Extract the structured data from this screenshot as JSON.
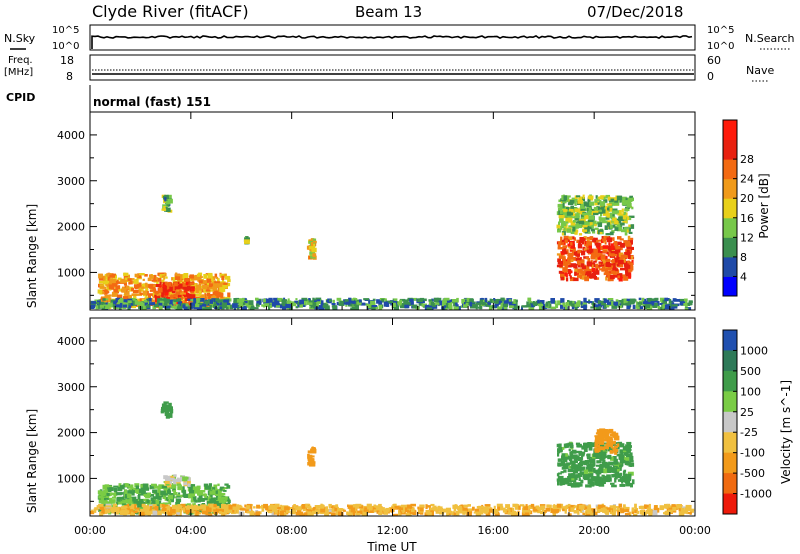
{
  "header": {
    "station": "Clyde River (fitACF)",
    "beam": "Beam 13",
    "date": "07/Dec/2018"
  },
  "top_panels": {
    "nsky_label": "N.Sky",
    "nsky_ticks": [
      "10^5",
      "10^0"
    ],
    "nsearch_label": "N.Search",
    "nsearch_ticks": [
      "10^5",
      "10^0"
    ],
    "freq_label": "Freq.",
    "freq_unit": "[MHz]",
    "freq_ticks": [
      "18",
      "8"
    ],
    "nave_label": "Nave",
    "nave_ticks": [
      "60",
      "0"
    ],
    "cpid_label": "CPID",
    "cpid_value": "normal (fast) 151"
  },
  "axes": {
    "xlabel": "Time UT",
    "x_ticks": [
      "00:00",
      "04:00",
      "08:00",
      "12:00",
      "16:00",
      "20:00",
      "00:00"
    ],
    "ylabel": "Slant Range [km]",
    "y_ticks": [
      "1000",
      "2000",
      "3000",
      "4000"
    ],
    "ylim": [
      180,
      4500
    ]
  },
  "power_colorbar": {
    "label": "Power [dB]",
    "ticks": [
      "4",
      "8",
      "12",
      "16",
      "20",
      "24",
      "28"
    ],
    "colors": [
      "#0000ff",
      "#1f4aa8",
      "#3b8f4f",
      "#77c84a",
      "#e8d01a",
      "#f09a1a",
      "#f36a12",
      "#e8200f",
      "#ff1a0a"
    ]
  },
  "velocity_colorbar": {
    "label": "Velocity [m s^-1]",
    "ticks": [
      "1000",
      "500",
      "100",
      "25",
      "-25",
      "-100",
      "-500",
      "-1000"
    ],
    "colors": [
      "#2050b0",
      "#2e7a58",
      "#3f9c4a",
      "#7acc45",
      "#c8c8c8",
      "#f0c040",
      "#f29a1a",
      "#f06a10",
      "#ee1a0a"
    ]
  },
  "chart_data": {
    "type": "heatmap",
    "title": "Clyde River (fitACF) Beam 13 07/Dec/2018",
    "xlabel": "Time UT",
    "ylabel": "Slant Range [km]",
    "xlim_hours": [
      0,
      24
    ],
    "ylim_km": [
      180,
      4500
    ],
    "power_echo_regions": [
      {
        "t_start": 0.3,
        "t_end": 5.6,
        "r_start": 200,
        "r_end": 1000,
        "power_db": 22
      },
      {
        "t_start": 2.5,
        "t_end": 4.2,
        "r_start": 250,
        "r_end": 800,
        "power_db": 28
      },
      {
        "t_start": 8.6,
        "t_end": 9.0,
        "r_start": 1250,
        "r_end": 1750,
        "power_db": 20
      },
      {
        "t_start": 2.8,
        "t_end": 3.3,
        "r_start": 2300,
        "r_end": 2700,
        "power_db": 12
      },
      {
        "t_start": 6.1,
        "t_end": 6.3,
        "r_start": 1600,
        "r_end": 1800,
        "power_db": 12
      },
      {
        "t_start": 18.5,
        "t_end": 21.6,
        "r_start": 800,
        "r_end": 1800,
        "power_db": 28
      },
      {
        "t_start": 18.5,
        "t_end": 21.6,
        "r_start": 1800,
        "r_end": 2700,
        "power_db": 14
      },
      {
        "t_start": 0.0,
        "t_end": 24.0,
        "r_start": 180,
        "r_end": 450,
        "power_db": 10
      }
    ],
    "velocity_echo_regions": [
      {
        "t_start": 0.3,
        "t_end": 5.6,
        "r_start": 200,
        "r_end": 900,
        "velocity": 100
      },
      {
        "t_start": 2.9,
        "t_end": 4.0,
        "r_start": 800,
        "r_end": 1100,
        "velocity": 0
      },
      {
        "t_start": 8.6,
        "t_end": 9.0,
        "r_start": 1250,
        "r_end": 1750,
        "velocity": -300
      },
      {
        "t_start": 2.8,
        "t_end": 3.3,
        "r_start": 2300,
        "r_end": 2700,
        "velocity": 200
      },
      {
        "t_start": 18.5,
        "t_end": 21.6,
        "r_start": 800,
        "r_end": 1800,
        "velocity": 150
      },
      {
        "t_start": 20.0,
        "t_end": 21.0,
        "r_start": 1500,
        "r_end": 2100,
        "velocity": -300
      },
      {
        "t_start": 0.0,
        "t_end": 24.0,
        "r_start": 180,
        "r_end": 450,
        "velocity": -80
      }
    ]
  }
}
